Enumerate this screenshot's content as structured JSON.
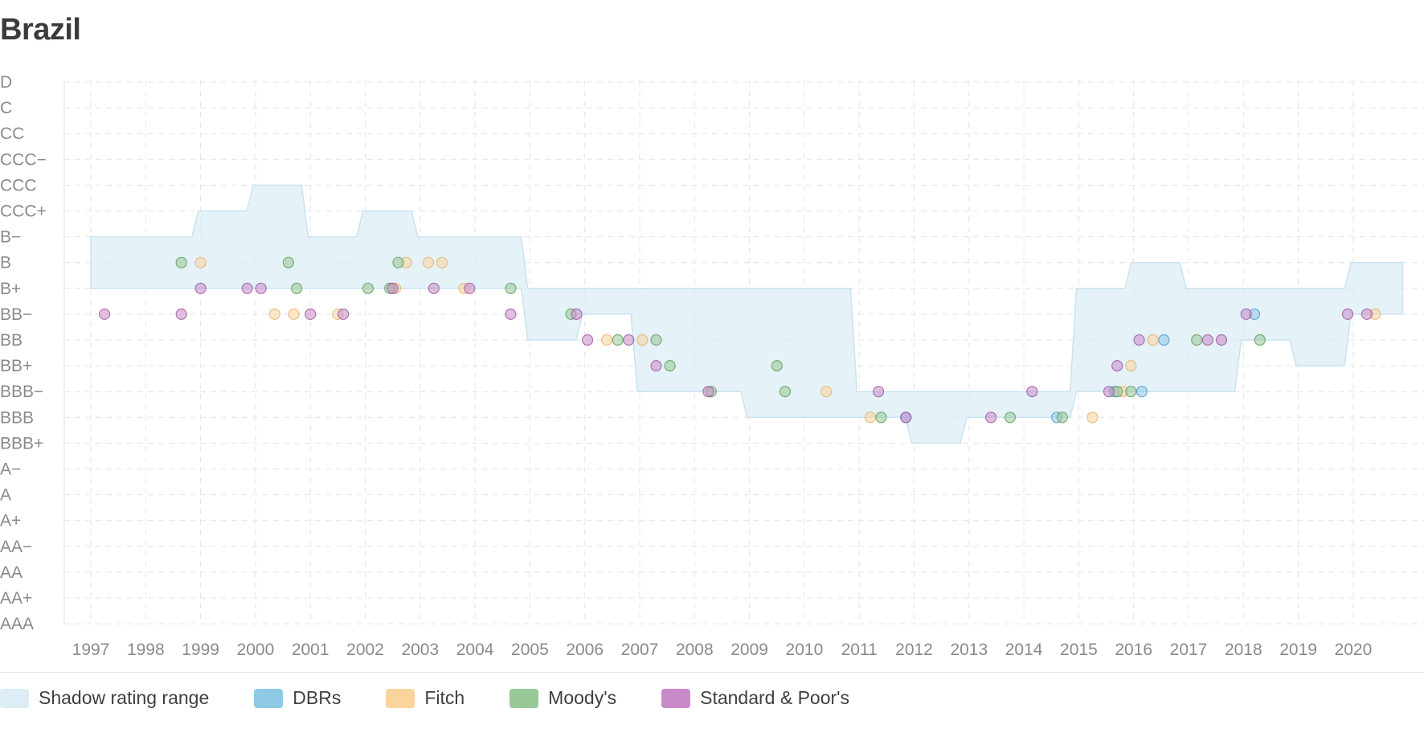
{
  "title": "Brazil",
  "colors": {
    "shadow": "#dcedf6",
    "shadow_stroke": "#c9e3f0",
    "DBRs": "#8fc9e6",
    "Fitch": "#fbd49c",
    "Moody's": "#98c895",
    "Standard & Poor's": "#c88ac9",
    "grid": "#e4e4e4",
    "axis_text": "#8a8a8a"
  },
  "legend": [
    {
      "key": "shadow",
      "label": "Shadow rating range"
    },
    {
      "key": "DBRs",
      "label": "DBRs"
    },
    {
      "key": "Fitch",
      "label": "Fitch"
    },
    {
      "key": "Moody's",
      "label": "Moody's"
    },
    {
      "key": "Standard & Poor's",
      "label": "Standard & Poor's"
    }
  ],
  "chart_data": {
    "type": "scatter",
    "title": "Brazil",
    "y_categories": [
      "D",
      "C",
      "CC",
      "CCC−",
      "CCC",
      "CCC+",
      "B−",
      "B",
      "B+",
      "BB−",
      "BB",
      "BB+",
      "BBB−",
      "BBB",
      "BBB+",
      "A−",
      "A",
      "A+",
      "AA−",
      "AA",
      "AA+",
      "AAA"
    ],
    "x_ticks": [
      "1997",
      "1998",
      "1999",
      "2000",
      "2001",
      "2002",
      "2003",
      "2004",
      "2005",
      "2006",
      "2007",
      "2008",
      "2009",
      "2010",
      "2011",
      "2012",
      "2013",
      "2014",
      "2015",
      "2016",
      "2017",
      "2018",
      "2019",
      "2020"
    ],
    "xlim": [
      1996.6,
      2021.4
    ],
    "grid": true,
    "legend_position": "bottom",
    "shadow_range": [
      {
        "start": 1997.0,
        "end": 1998.9,
        "top": "B−",
        "bottom": "B+"
      },
      {
        "start": 1998.9,
        "end": 1999.9,
        "top": "CCC+",
        "bottom": "B+"
      },
      {
        "start": 1999.9,
        "end": 2000.9,
        "top": "CCC",
        "bottom": "B+"
      },
      {
        "start": 2000.9,
        "end": 2001.9,
        "top": "B−",
        "bottom": "B+"
      },
      {
        "start": 2001.9,
        "end": 2002.9,
        "top": "CCC+",
        "bottom": "B+"
      },
      {
        "start": 2002.9,
        "end": 2004.9,
        "top": "B−",
        "bottom": "B+"
      },
      {
        "start": 2004.9,
        "end": 2005.9,
        "top": "B+",
        "bottom": "BB"
      },
      {
        "start": 2005.9,
        "end": 2006.9,
        "top": "B+",
        "bottom": "BB−"
      },
      {
        "start": 2006.9,
        "end": 2008.9,
        "top": "B+",
        "bottom": "BBB−"
      },
      {
        "start": 2008.9,
        "end": 2010.9,
        "top": "B+",
        "bottom": "BBB"
      },
      {
        "start": 2010.9,
        "end": 2011.9,
        "top": "BBB−",
        "bottom": "BBB"
      },
      {
        "start": 2011.9,
        "end": 2012.9,
        "top": "BBB−",
        "bottom": "BBB+"
      },
      {
        "start": 2012.9,
        "end": 2014.9,
        "top": "BBB−",
        "bottom": "BBB"
      },
      {
        "start": 2014.9,
        "end": 2015.9,
        "top": "B+",
        "bottom": "BBB−"
      },
      {
        "start": 2015.9,
        "end": 2016.9,
        "top": "B",
        "bottom": "BBB−"
      },
      {
        "start": 2016.9,
        "end": 2017.9,
        "top": "B+",
        "bottom": "BBB−"
      },
      {
        "start": 2017.9,
        "end": 2018.9,
        "top": "B+",
        "bottom": "BB"
      },
      {
        "start": 2018.9,
        "end": 2019.9,
        "top": "B+",
        "bottom": "BB+"
      },
      {
        "start": 2019.9,
        "end": 2020.9,
        "top": "B",
        "bottom": "BB−"
      }
    ],
    "series": [
      {
        "name": "DBRs",
        "points": [
          {
            "x": 2011.85,
            "y": "BBB"
          },
          {
            "x": 2014.6,
            "y": "BBB"
          },
          {
            "x": 2015.65,
            "y": "BBB−"
          },
          {
            "x": 2016.15,
            "y": "BBB−"
          },
          {
            "x": 2016.55,
            "y": "BB"
          },
          {
            "x": 2018.2,
            "y": "BB−"
          }
        ]
      },
      {
        "name": "Fitch",
        "points": [
          {
            "x": 1999.0,
            "y": "B"
          },
          {
            "x": 2000.35,
            "y": "BB−"
          },
          {
            "x": 2000.7,
            "y": "BB−"
          },
          {
            "x": 2001.5,
            "y": "BB−"
          },
          {
            "x": 2002.55,
            "y": "B+"
          },
          {
            "x": 2002.75,
            "y": "B"
          },
          {
            "x": 2003.15,
            "y": "B"
          },
          {
            "x": 2003.4,
            "y": "B"
          },
          {
            "x": 2003.8,
            "y": "B+"
          },
          {
            "x": 2006.4,
            "y": "BB"
          },
          {
            "x": 2007.05,
            "y": "BB"
          },
          {
            "x": 2010.4,
            "y": "BBB−"
          },
          {
            "x": 2011.2,
            "y": "BBB"
          },
          {
            "x": 2015.25,
            "y": "BBB"
          },
          {
            "x": 2015.8,
            "y": "BBB−"
          },
          {
            "x": 2015.95,
            "y": "BB+"
          },
          {
            "x": 2016.35,
            "y": "BB"
          },
          {
            "x": 2020.4,
            "y": "BB−"
          }
        ]
      },
      {
        "name": "Moody's",
        "points": [
          {
            "x": 1998.65,
            "y": "B"
          },
          {
            "x": 2000.6,
            "y": "B"
          },
          {
            "x": 2000.75,
            "y": "B+"
          },
          {
            "x": 2002.05,
            "y": "B+"
          },
          {
            "x": 2002.45,
            "y": "B+"
          },
          {
            "x": 2002.6,
            "y": "B"
          },
          {
            "x": 2004.65,
            "y": "B+"
          },
          {
            "x": 2005.75,
            "y": "BB−"
          },
          {
            "x": 2006.6,
            "y": "BB"
          },
          {
            "x": 2007.3,
            "y": "BB"
          },
          {
            "x": 2007.55,
            "y": "BB+"
          },
          {
            "x": 2008.3,
            "y": "BBB−"
          },
          {
            "x": 2009.5,
            "y": "BB+"
          },
          {
            "x": 2009.65,
            "y": "BBB−"
          },
          {
            "x": 2011.4,
            "y": "BBB"
          },
          {
            "x": 2013.75,
            "y": "BBB"
          },
          {
            "x": 2014.7,
            "y": "BBB"
          },
          {
            "x": 2015.7,
            "y": "BBB−"
          },
          {
            "x": 2015.95,
            "y": "BBB−"
          },
          {
            "x": 2017.15,
            "y": "BB"
          },
          {
            "x": 2018.3,
            "y": "BB"
          }
        ]
      },
      {
        "name": "Standard & Poor's",
        "points": [
          {
            "x": 1997.25,
            "y": "BB−"
          },
          {
            "x": 1998.65,
            "y": "BB−"
          },
          {
            "x": 1999.0,
            "y": "B+"
          },
          {
            "x": 1999.85,
            "y": "B+"
          },
          {
            "x": 2000.1,
            "y": "B+"
          },
          {
            "x": 2001.0,
            "y": "BB−"
          },
          {
            "x": 2001.6,
            "y": "BB−"
          },
          {
            "x": 2002.5,
            "y": "B+"
          },
          {
            "x": 2003.25,
            "y": "B+"
          },
          {
            "x": 2003.9,
            "y": "B+"
          },
          {
            "x": 2004.65,
            "y": "BB−"
          },
          {
            "x": 2005.85,
            "y": "BB−"
          },
          {
            "x": 2006.05,
            "y": "BB"
          },
          {
            "x": 2006.8,
            "y": "BB"
          },
          {
            "x": 2007.3,
            "y": "BB+"
          },
          {
            "x": 2008.25,
            "y": "BBB−"
          },
          {
            "x": 2011.35,
            "y": "BBB−"
          },
          {
            "x": 2011.85,
            "y": "BBB"
          },
          {
            "x": 2013.4,
            "y": "BBB"
          },
          {
            "x": 2014.15,
            "y": "BBB−"
          },
          {
            "x": 2015.55,
            "y": "BBB−"
          },
          {
            "x": 2015.7,
            "y": "BB+"
          },
          {
            "x": 2016.1,
            "y": "BB"
          },
          {
            "x": 2017.35,
            "y": "BB"
          },
          {
            "x": 2017.6,
            "y": "BB"
          },
          {
            "x": 2018.05,
            "y": "BB−"
          },
          {
            "x": 2019.9,
            "y": "BB−"
          },
          {
            "x": 2020.25,
            "y": "BB−"
          }
        ]
      }
    ]
  }
}
